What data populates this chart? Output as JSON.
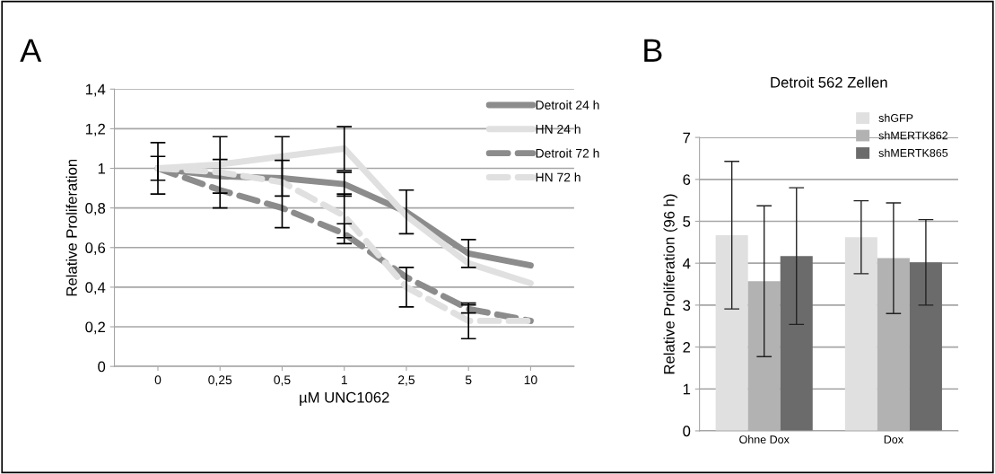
{
  "chart_data": [
    {
      "type": "line",
      "xlabel": "µM UNC1062",
      "ylabel": "Relative Proliferation",
      "annotations": [
        "A"
      ],
      "categories": [
        "0",
        "0,25",
        "0,5",
        "1",
        "2,5",
        "5",
        "10"
      ],
      "series": [
        {
          "name": "Detroit 24 h",
          "color": "#8c8c8c",
          "line_style": "solid",
          "values": [
            1.0,
            0.96,
            0.95,
            0.92,
            0.78,
            0.57,
            0.51
          ],
          "errors": [
            0.06,
            0.085,
            0.09,
            0.06,
            0.11,
            0.07,
            null
          ]
        },
        {
          "name": "HN 24 h",
          "color": "#e0e0e0",
          "line_style": "solid",
          "values": [
            1.0,
            1.02,
            1.06,
            1.1,
            0.76,
            0.52,
            0.42
          ],
          "errors": [
            null,
            null,
            null,
            0.11,
            null,
            null,
            null
          ]
        },
        {
          "name": "Detroit 72 h",
          "color": "#8c8c8c",
          "line_style": "dashed",
          "values": [
            1.0,
            0.89,
            0.8,
            0.67,
            0.45,
            0.29,
            0.23
          ],
          "errors": [
            null,
            null,
            null,
            0.05,
            null,
            0.02,
            null
          ]
        },
        {
          "name": "HN 72 h",
          "color": "#e0e0e0",
          "line_style": "dashed",
          "values": [
            1.0,
            0.98,
            0.93,
            0.76,
            0.4,
            0.23,
            0.23
          ],
          "errors": [
            0.13,
            0.18,
            0.23,
            0.11,
            0.1,
            0.09,
            null
          ]
        }
      ],
      "ylim": [
        0,
        1.4
      ],
      "yticks": [
        {
          "value": 0,
          "label": "0"
        },
        {
          "value": 0.2,
          "label": "0,2"
        },
        {
          "value": 0.4,
          "label": "0,4"
        },
        {
          "value": 0.6,
          "label": "0,6"
        },
        {
          "value": 0.8,
          "label": "0,8"
        },
        {
          "value": 1,
          "label": "1"
        },
        {
          "value": 1.2,
          "label": "1,2"
        },
        {
          "value": 1.4,
          "label": "1,4"
        }
      ],
      "grid": "y",
      "legend": "top right",
      "marker": "none"
    },
    {
      "type": "bar",
      "title": "Detroit 562 Zellen",
      "ylabel": "Relative Proliferation (96 h)",
      "annotations": [
        "B"
      ],
      "categories": [
        "Ohne Dox",
        "Dox"
      ],
      "series": [
        {
          "name": "shGFP",
          "color": "#e0e0e0",
          "values": [
            4.67,
            4.62
          ],
          "errors": [
            1.76,
            0.87
          ]
        },
        {
          "name": "shMERTK862",
          "color": "#b2b2b2",
          "values": [
            3.57,
            4.12
          ],
          "errors": [
            1.8,
            1.32
          ]
        },
        {
          "name": "shMERTK865",
          "color": "#6b6b6b",
          "values": [
            4.17,
            4.02
          ],
          "errors": [
            1.63,
            1.02
          ]
        }
      ],
      "ylim": [
        0,
        7
      ],
      "yticks": [
        0,
        1,
        2,
        3,
        4,
        5,
        6,
        7
      ],
      "grid": "y",
      "legend": "top right"
    }
  ]
}
